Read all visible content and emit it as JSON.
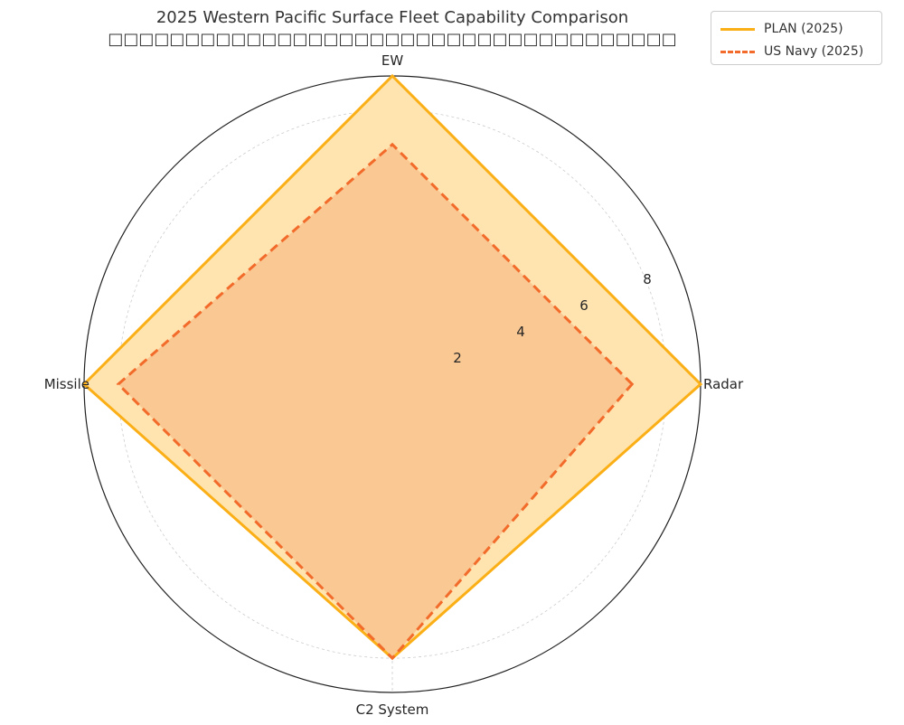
{
  "chart_data": {
    "type": "radar",
    "title": "2025 Western Pacific Surface Fleet Capability Comparison",
    "subtitle": "□□□□□□□□□□□□□□□□□□□□□□□□□□□□□□□□□□□□□",
    "axes": [
      "Radar",
      "EW",
      "Missile",
      "C2 System"
    ],
    "rticks": [
      2,
      4,
      6,
      8
    ],
    "rlim": [
      0,
      9
    ],
    "grid": true,
    "legend_position": "top-right",
    "series": [
      {
        "name": "PLAN (2025)",
        "values": [
          9,
          9,
          9,
          8
        ],
        "color": "#FBAF17",
        "fill": "#FFE4B0",
        "style": "solid"
      },
      {
        "name": "US Navy (2025)",
        "values": [
          7,
          7,
          8,
          8
        ],
        "color": "#F26B2A",
        "fill": "#F8C38E",
        "style": "dashed"
      }
    ]
  }
}
